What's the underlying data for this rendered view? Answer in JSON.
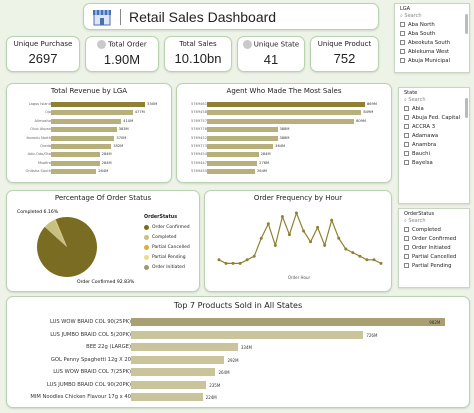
{
  "header": {
    "title": "Retail Sales Dashboard",
    "icon": "store-icon"
  },
  "kpis": {
    "unique_purchase": {
      "label": "Unique Purchase",
      "value": "2697"
    },
    "total_order": {
      "label": "Total Order",
      "value": "1.90M"
    },
    "total_sales": {
      "label": "Total Sales",
      "value": "10.10bn"
    },
    "unique_state": {
      "label": "Unique State",
      "value": "41"
    },
    "unique_product": {
      "label": "Unique Product",
      "value": "752"
    }
  },
  "lga_slicer": {
    "title": "LGA",
    "search": "Search",
    "items": [
      "Aba North",
      "Aba South",
      "Abeokuta South",
      "Ablekuma West",
      "Abuja Municipal"
    ]
  },
  "state_slicer": {
    "title": "State",
    "search": "Search",
    "items": [
      "Abia",
      "Abuja Fed. Capital",
      "ACCRA 3",
      "Adamawa",
      "Anambra",
      "Bauchi",
      "Bayelsa"
    ]
  },
  "orderstatus_slicer": {
    "title": "OrderStatus",
    "search": "Search",
    "items": [
      "Completed",
      "Order Confirmed",
      "Order Initiated",
      "Partial Cancelled",
      "Partial Pending"
    ]
  },
  "colors": {
    "accent": "#908036",
    "bar": "#b8b07c",
    "bar_light": "#c9c49c",
    "border": "#b9d3b0",
    "background": "#eef3e8"
  },
  "chart_data": [
    {
      "type": "bar",
      "title": "Total Revenue by LGA",
      "categories": [
        "Lagos Island",
        "Ojo",
        "Alimosho",
        "Oluo Akpan",
        "Ikorodu North",
        "Oredo",
        "Ado-Odo/Ota",
        "Msafiro",
        "Onitsha South"
      ],
      "values": [
        550,
        477,
        410,
        383,
        370,
        352,
        284,
        284,
        264
      ],
      "value_labels": [
        "550M",
        "477M",
        "410M",
        "383M",
        "370M",
        "352M",
        "284M",
        "284M",
        "264M"
      ],
      "xmax": 560
    },
    {
      "type": "bar",
      "title": "Agent Who Made The Most Sales",
      "categories": [
        "5769461",
        "5769458",
        "5769757",
        "5769778",
        "5769452",
        "5769773",
        "5769454",
        "5769447",
        "5769455"
      ],
      "values": [
        869,
        849,
        809,
        388,
        388,
        364,
        284,
        276,
        264
      ],
      "value_labels": [
        "869M",
        "849M",
        "809M",
        "388M",
        "388M",
        "364M",
        "284M",
        "276M",
        "264M"
      ],
      "xmax": 880
    },
    {
      "type": "pie",
      "title": "Percentage Of Order Status",
      "legend_title": "OrderStatus",
      "slices": [
        {
          "name": "Order Confirmed",
          "value": 92.83,
          "label": "Order Confirmed 92.83%",
          "color": "#7b6c24"
        },
        {
          "name": "Completed",
          "value": 6.16,
          "label": "Completed 6.16%",
          "color": "#c8c080"
        },
        {
          "name": "Partial Cancelled",
          "value": 0.4,
          "color": "#d8b040"
        },
        {
          "name": "Partial Pending",
          "value": 0.3,
          "color": "#eadb8a"
        },
        {
          "name": "Order Initiated",
          "value": 0.31,
          "color": "#a09870"
        }
      ]
    },
    {
      "type": "line",
      "title": "Order Frequency by Hour",
      "xlabel": "Order Hour",
      "x": [
        0,
        1,
        2,
        3,
        4,
        5,
        6,
        7,
        8,
        9,
        10,
        11,
        12,
        13,
        14,
        15,
        16,
        17,
        18,
        19,
        20,
        21,
        22,
        23
      ],
      "values": [
        2,
        1,
        1,
        1,
        2,
        3,
        8,
        12,
        6,
        14,
        9,
        15,
        10,
        7,
        11,
        6,
        13,
        8,
        5,
        4,
        3,
        2,
        2,
        1
      ],
      "color": "#908036"
    },
    {
      "type": "bar",
      "title": "Top 7 Products Sold in All States",
      "categories": [
        "LUS WOW BRAID COL 90(25PK)",
        "LUS JUMBO BRAID COL 5(20PK)",
        "BEE 22g (LARGE)",
        "GOL Penny Spaghetti 12g X 20",
        "LUS WOW BRAID COL 7(25PK)",
        "LUS JUMBO BRAID COL 90(20PK)",
        "MIM Noodles Chicken Flavour 17g x 40"
      ],
      "values": [
        982,
        726,
        334,
        292,
        264,
        235,
        224
      ],
      "value_labels": [
        "982M",
        "726M",
        "334M",
        "292M",
        "264M",
        "235M",
        "224M"
      ],
      "xmax": 1000
    }
  ]
}
